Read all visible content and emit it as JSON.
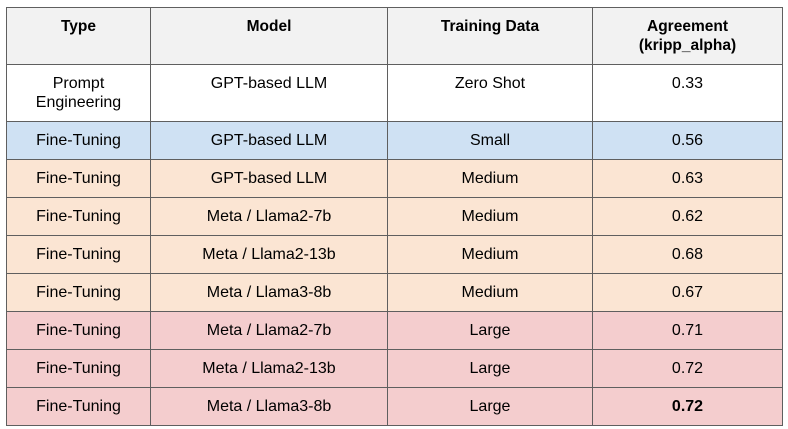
{
  "table": {
    "headers": {
      "type": "Type",
      "model": "Model",
      "training_data": "Training Data",
      "agreement_line1": "Agreement",
      "agreement_line2": "(kripp_alpha)"
    },
    "rows": [
      {
        "type_line1": "Prompt",
        "type_line2": "Engineering",
        "model": "GPT-based LLM",
        "training_data": "Zero Shot",
        "agreement": "0.33",
        "row_color": "#ffffff"
      },
      {
        "type": "Fine-Tuning",
        "model": "GPT-based LLM",
        "training_data": "Small",
        "agreement": "0.56",
        "row_color": "#cfe1f3"
      },
      {
        "type": "Fine-Tuning",
        "model": "GPT-based LLM",
        "training_data": "Medium",
        "agreement": "0.63",
        "row_color": "#fbe5d3"
      },
      {
        "type": "Fine-Tuning",
        "model": "Meta / Llama2-7b",
        "training_data": "Medium",
        "agreement": "0.62",
        "row_color": "#fbe5d3"
      },
      {
        "type": "Fine-Tuning",
        "model": "Meta / Llama2-13b",
        "training_data": "Medium",
        "agreement": "0.68",
        "row_color": "#fbe5d3"
      },
      {
        "type": "Fine-Tuning",
        "model": "Meta / Llama3-8b",
        "training_data": "Medium",
        "agreement": "0.67",
        "row_color": "#fbe5d3"
      },
      {
        "type": "Fine-Tuning",
        "model": "Meta / Llama2-7b",
        "training_data": "Large",
        "agreement": "0.71",
        "row_color": "#f4cdce"
      },
      {
        "type": "Fine-Tuning",
        "model": "Meta / Llama2-13b",
        "training_data": "Large",
        "agreement": "0.72",
        "row_color": "#f4cdce"
      },
      {
        "type": "Fine-Tuning",
        "model": "Meta / Llama3-8b",
        "training_data": "Large",
        "agreement": "0.72",
        "row_color": "#f4cdce",
        "agreement_bold": true
      }
    ]
  }
}
